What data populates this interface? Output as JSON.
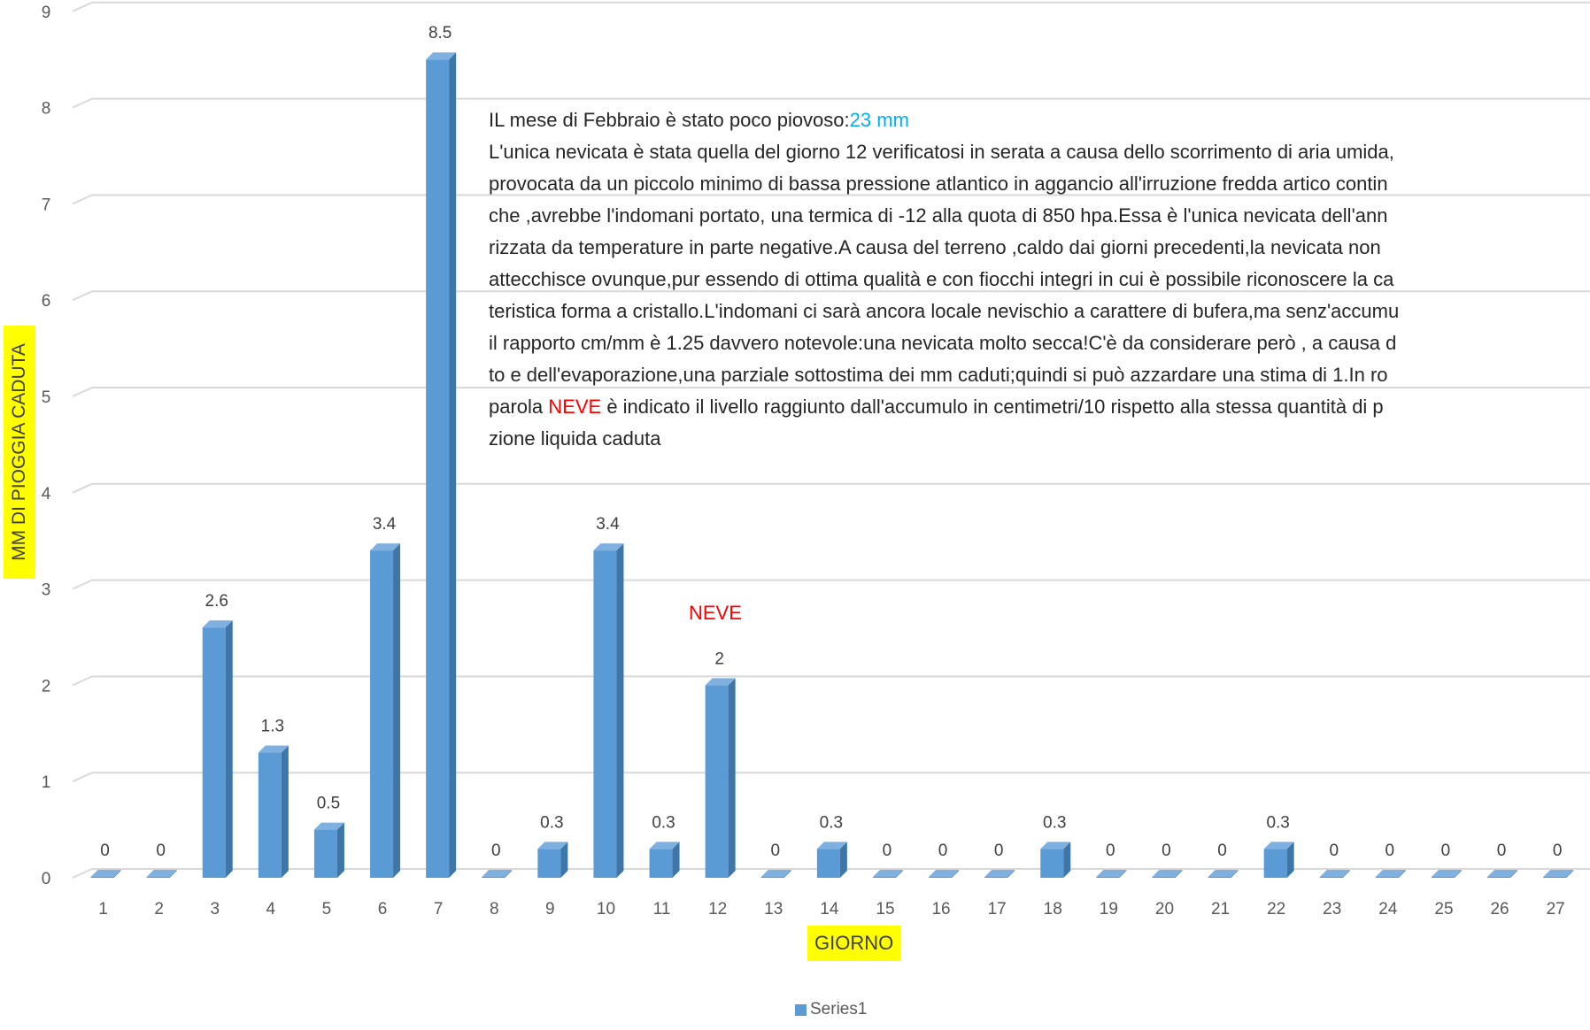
{
  "chart_data": {
    "type": "bar",
    "style": "3d-column",
    "categories": [
      "1",
      "2",
      "3",
      "4",
      "5",
      "6",
      "7",
      "8",
      "9",
      "10",
      "11",
      "12",
      "13",
      "14",
      "15",
      "16",
      "17",
      "18",
      "19",
      "20",
      "21",
      "22",
      "23",
      "24",
      "25",
      "26",
      "27"
    ],
    "series": [
      {
        "name": "Series1",
        "values": [
          0,
          0,
          2.6,
          1.3,
          0.5,
          3.4,
          8.5,
          0,
          0.3,
          3.4,
          0.3,
          2,
          0,
          0.3,
          0,
          0,
          0,
          0.3,
          0,
          0,
          0,
          0.3,
          0,
          0,
          0,
          0,
          0
        ],
        "color": "#5b9bd5"
      }
    ],
    "data_labels": [
      "0",
      "0",
      "2.6",
      "1.3",
      "0.5",
      "3.4",
      "8.5",
      "0",
      "0.3",
      "3.4",
      "0.3",
      "2",
      "0",
      "0.3",
      "0",
      "0",
      "0",
      "0.3",
      "0",
      "0",
      "0",
      "0.3",
      "0",
      "0",
      "0",
      "0",
      "0"
    ],
    "yticks": [
      "0",
      "1",
      "2",
      "3",
      "4",
      "5",
      "6",
      "7",
      "8",
      "9"
    ],
    "ylim": [
      0,
      9
    ],
    "xlabel": "GIORNO",
    "ylabel": "MM DI PIOGGIA CADUTA",
    "grid": true,
    "legend_position": "bottom",
    "annotation_neve": "NEVE"
  },
  "note": {
    "line1_prefix": "IL mese di Febbraio è stato poco piovoso:",
    "line1_value": "23 mm",
    "line2": "L'unica nevicata è stata quella del giorno 12 verificatosi in serata a causa dello scorrimento di aria umida,",
    "line3": "provocata da un piccolo minimo di bassa pressione atlantico in aggancio all'irruzione fredda artico contin",
    "line4": "che ,avrebbe l'indomani portato, una termica di -12 alla quota di 850 hpa.Essa è l'unica nevicata dell'ann",
    "line5": "rizzata da temperature in parte negative.A causa del terreno ,caldo dai giorni precedenti,la nevicata non",
    "line6": "attecchisce ovunque,pur essendo di ottima qualità e con fiocchi integri in cui è possibile riconoscere la ca",
    "line7": "teristica forma a cristallo.L'indomani ci sarà ancora locale nevischio a carattere di bufera,ma senz'accumu",
    "line8": "il rapporto cm/mm è 1.25 davvero notevole:una nevicata molto secca!C'è da considerare però , a causa d",
    "line9": "to e dell'evaporazione,una parziale sottostima dei mm caduti;quindi si può azzardare una stima di 1.In ro",
    "line10_prefix": "parola ",
    "line10_neve": "NEVE",
    "line10_suffix": " è indicato il livello raggiunto dall'accumulo in centimetri/10 rispetto alla stessa quantità di p",
    "line11": "zione liquida caduta"
  },
  "colors": {
    "bar_front": "#5b9bd5",
    "bar_side": "#3f76a8",
    "bar_top": "#7fb0e0",
    "grid": "#d9d9d9",
    "label_highlight": "#ffff00"
  }
}
